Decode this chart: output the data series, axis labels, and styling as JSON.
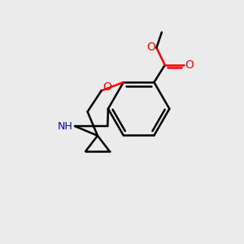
{
  "bg_color": "#ebebeb",
  "bond_color": "#000000",
  "oxygen_color": "#ff0000",
  "nitrogen_color": "#0000cc",
  "bond_width": 1.8,
  "figsize": [
    3.0,
    3.0
  ],
  "dpi": 100,
  "xlim": [
    0,
    10
  ],
  "ylim": [
    0,
    10
  ]
}
